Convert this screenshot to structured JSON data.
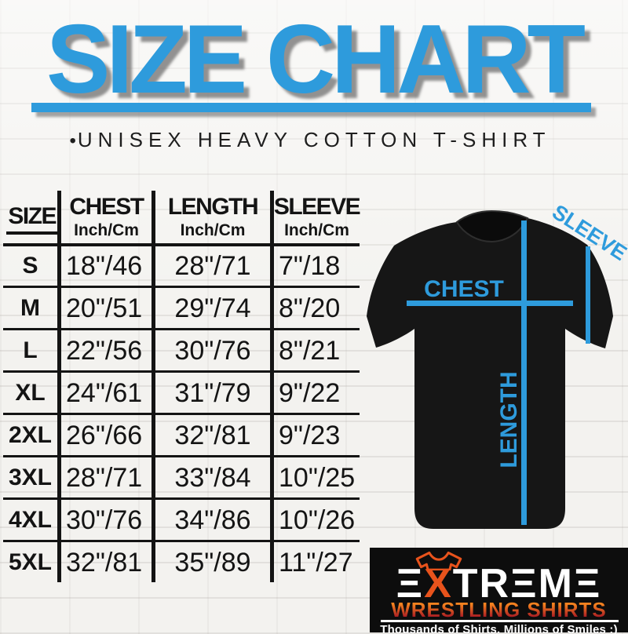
{
  "title": "SIZE CHART",
  "subtitle": {
    "bullet": "•",
    "text": "UNISEX HEAVY COTTON T-SHIRT"
  },
  "colors": {
    "accent_blue": "#2E9BDC",
    "brand_orange": "#E8531C",
    "wrestling_gradient_top": "#F5821F",
    "wrestling_gradient_bottom": "#AB1E23",
    "table_line_black": "#141414",
    "shirt_black": "#161616",
    "logo_background": "#0D0D0D"
  },
  "size_table": {
    "columns": [
      {
        "label": "SIZE",
        "sub": ""
      },
      {
        "label": "CHEST",
        "sub": "Inch/Cm"
      },
      {
        "label": "LENGTH",
        "sub": "Inch/Cm"
      },
      {
        "label": "SLEEVE",
        "sub": "Inch/Cm"
      }
    ],
    "rows": [
      {
        "size": "S",
        "chest": "18\"/46",
        "length": "28\"/71",
        "sleeve": "7\"/18"
      },
      {
        "size": "M",
        "chest": "20\"/51",
        "length": "29\"/74",
        "sleeve": "8\"/20"
      },
      {
        "size": "L",
        "chest": "22\"/56",
        "length": "30\"/76",
        "sleeve": "8\"/21"
      },
      {
        "size": "XL",
        "chest": "24\"/61",
        "length": "31\"/79",
        "sleeve": "9\"/22"
      },
      {
        "size": "2XL",
        "chest": "26\"/66",
        "length": "32\"/81",
        "sleeve": "9\"/23"
      },
      {
        "size": "3XL",
        "chest": "28\"/71",
        "length": "33\"/84",
        "sleeve": "10\"/25"
      },
      {
        "size": "4XL",
        "chest": "30\"/76",
        "length": "34\"/86",
        "sleeve": "10\"/26"
      },
      {
        "size": "5XL",
        "chest": "32\"/81",
        "length": "35\"/89",
        "sleeve": "11\"/27"
      }
    ]
  },
  "diagram": {
    "chest_label": "CHEST",
    "length_label": "LENGTH",
    "sleeve_label": "SLEEVE"
  },
  "logo": {
    "brand": "EXTREME",
    "stylized_e_glyph": "Ξ",
    "line2": "WRESTLING SHIRTS",
    "tagline": "Thousands of Shirts. Millions of Smiles :)",
    "icon": "tshirt-outline-icon"
  }
}
